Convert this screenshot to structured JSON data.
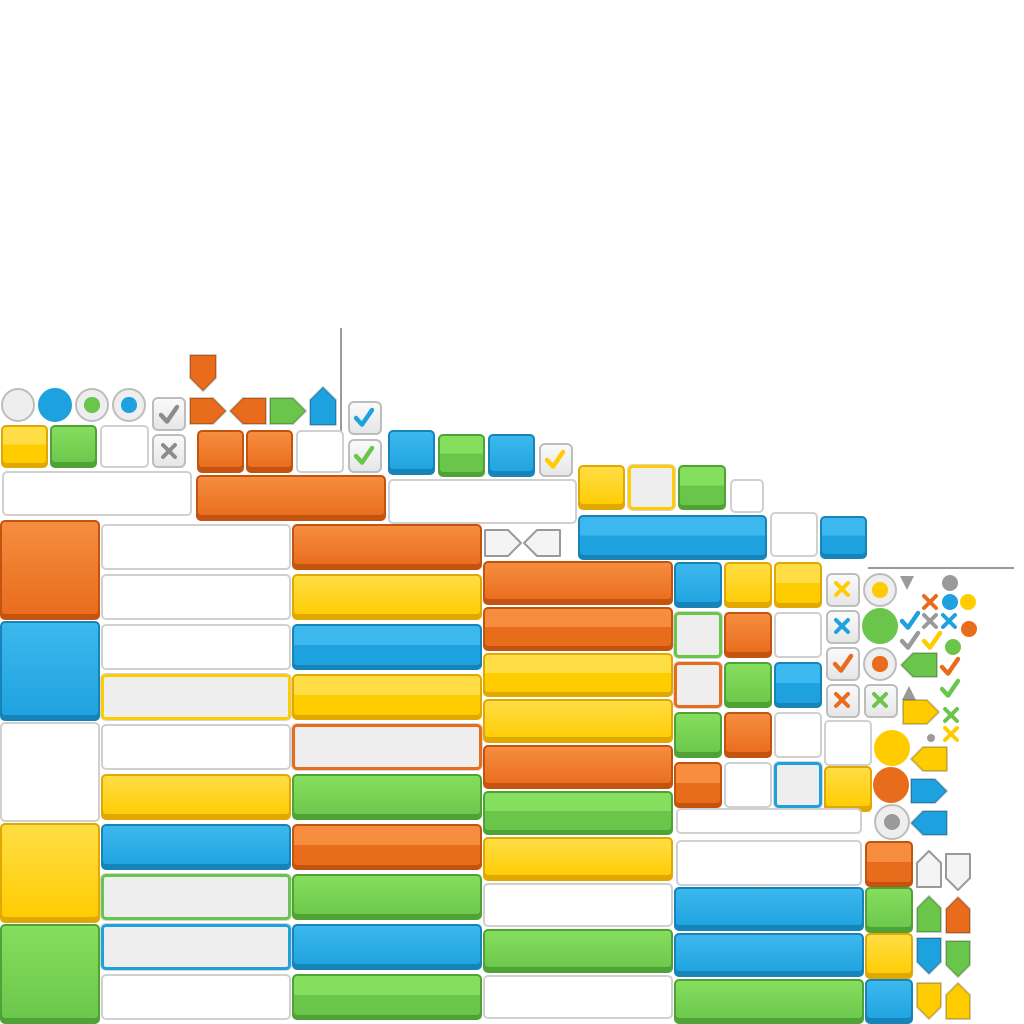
{
  "sheet": {
    "description_hidden": "",
    "palette": {
      "orange": "#e96b1c",
      "orange_light": "#f68d3f",
      "blue": "#1ea2df",
      "blue_light": "#3cb8ee",
      "green": "#6ac64a",
      "green_light": "#86de5e",
      "yellow": "#ffcc00",
      "yellow_light": "#ffdd44",
      "white": "#f2f2f2",
      "grey": "#9a9a9a"
    },
    "icons": [
      "check-icon",
      "cross-icon",
      "radio-icon",
      "arrow-right-icon",
      "arrow-left-icon",
      "arrow-up-icon",
      "arrow-down-icon",
      "triangle-icon",
      "dot-icon"
    ]
  }
}
